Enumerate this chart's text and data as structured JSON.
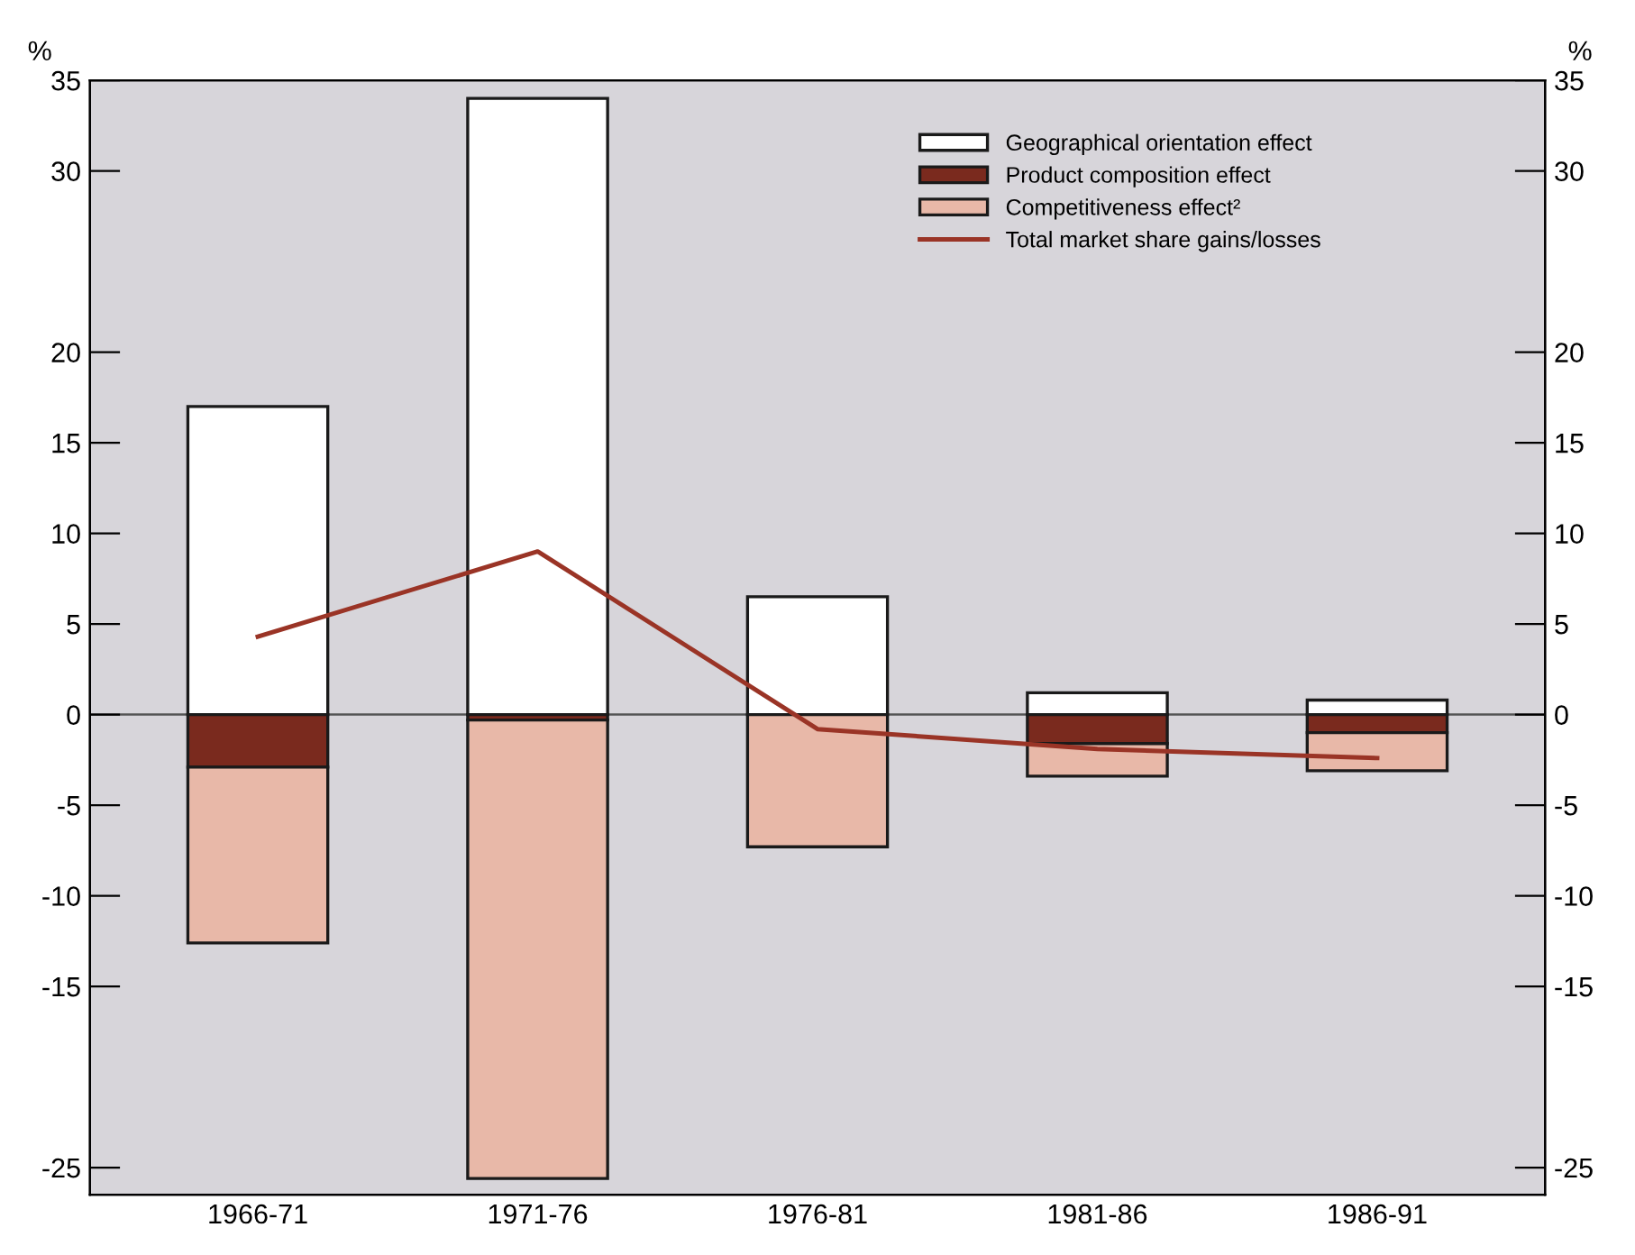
{
  "chart_data": {
    "type": "bar",
    "stacked": true,
    "categories": [
      "1966-71",
      "1971-76",
      "1976-81",
      "1981-86",
      "1986-91"
    ],
    "ylabel": "%",
    "y2label": "%",
    "series": [
      {
        "name": "Geographical orientation effect",
        "color": "#ffffff",
        "values": [
          17.0,
          34.0,
          6.5,
          1.2,
          0.8
        ]
      },
      {
        "name": "Product composition effect",
        "color": "#7a2a1e",
        "values": [
          -2.9,
          -0.3,
          null,
          -1.6,
          -1.0
        ]
      },
      {
        "name": "Competitiveness effect²",
        "color": "#e8b8a8",
        "values": [
          -9.7,
          -25.3,
          -7.3,
          -1.8,
          -2.1
        ]
      },
      {
        "name": "Total market share gains/losses",
        "type": "line",
        "color": "#9a3426",
        "values": [
          4.3,
          9.0,
          -0.8,
          -1.9,
          -2.4
        ]
      }
    ],
    "ylim": [
      -26.5,
      35
    ],
    "yticks": [
      35,
      30,
      20,
      15,
      10,
      5,
      0,
      -5,
      -10,
      -15,
      -25
    ],
    "y2lim": [
      -26.5,
      35
    ],
    "y2ticks": [
      35,
      30,
      20,
      15,
      10,
      5,
      0,
      -5,
      -10,
      -15,
      -25
    ],
    "ref_lines": [
      {
        "axis": "y",
        "value": 0,
        "color": "#555555"
      }
    ],
    "legend": "top right",
    "grid": false
  }
}
